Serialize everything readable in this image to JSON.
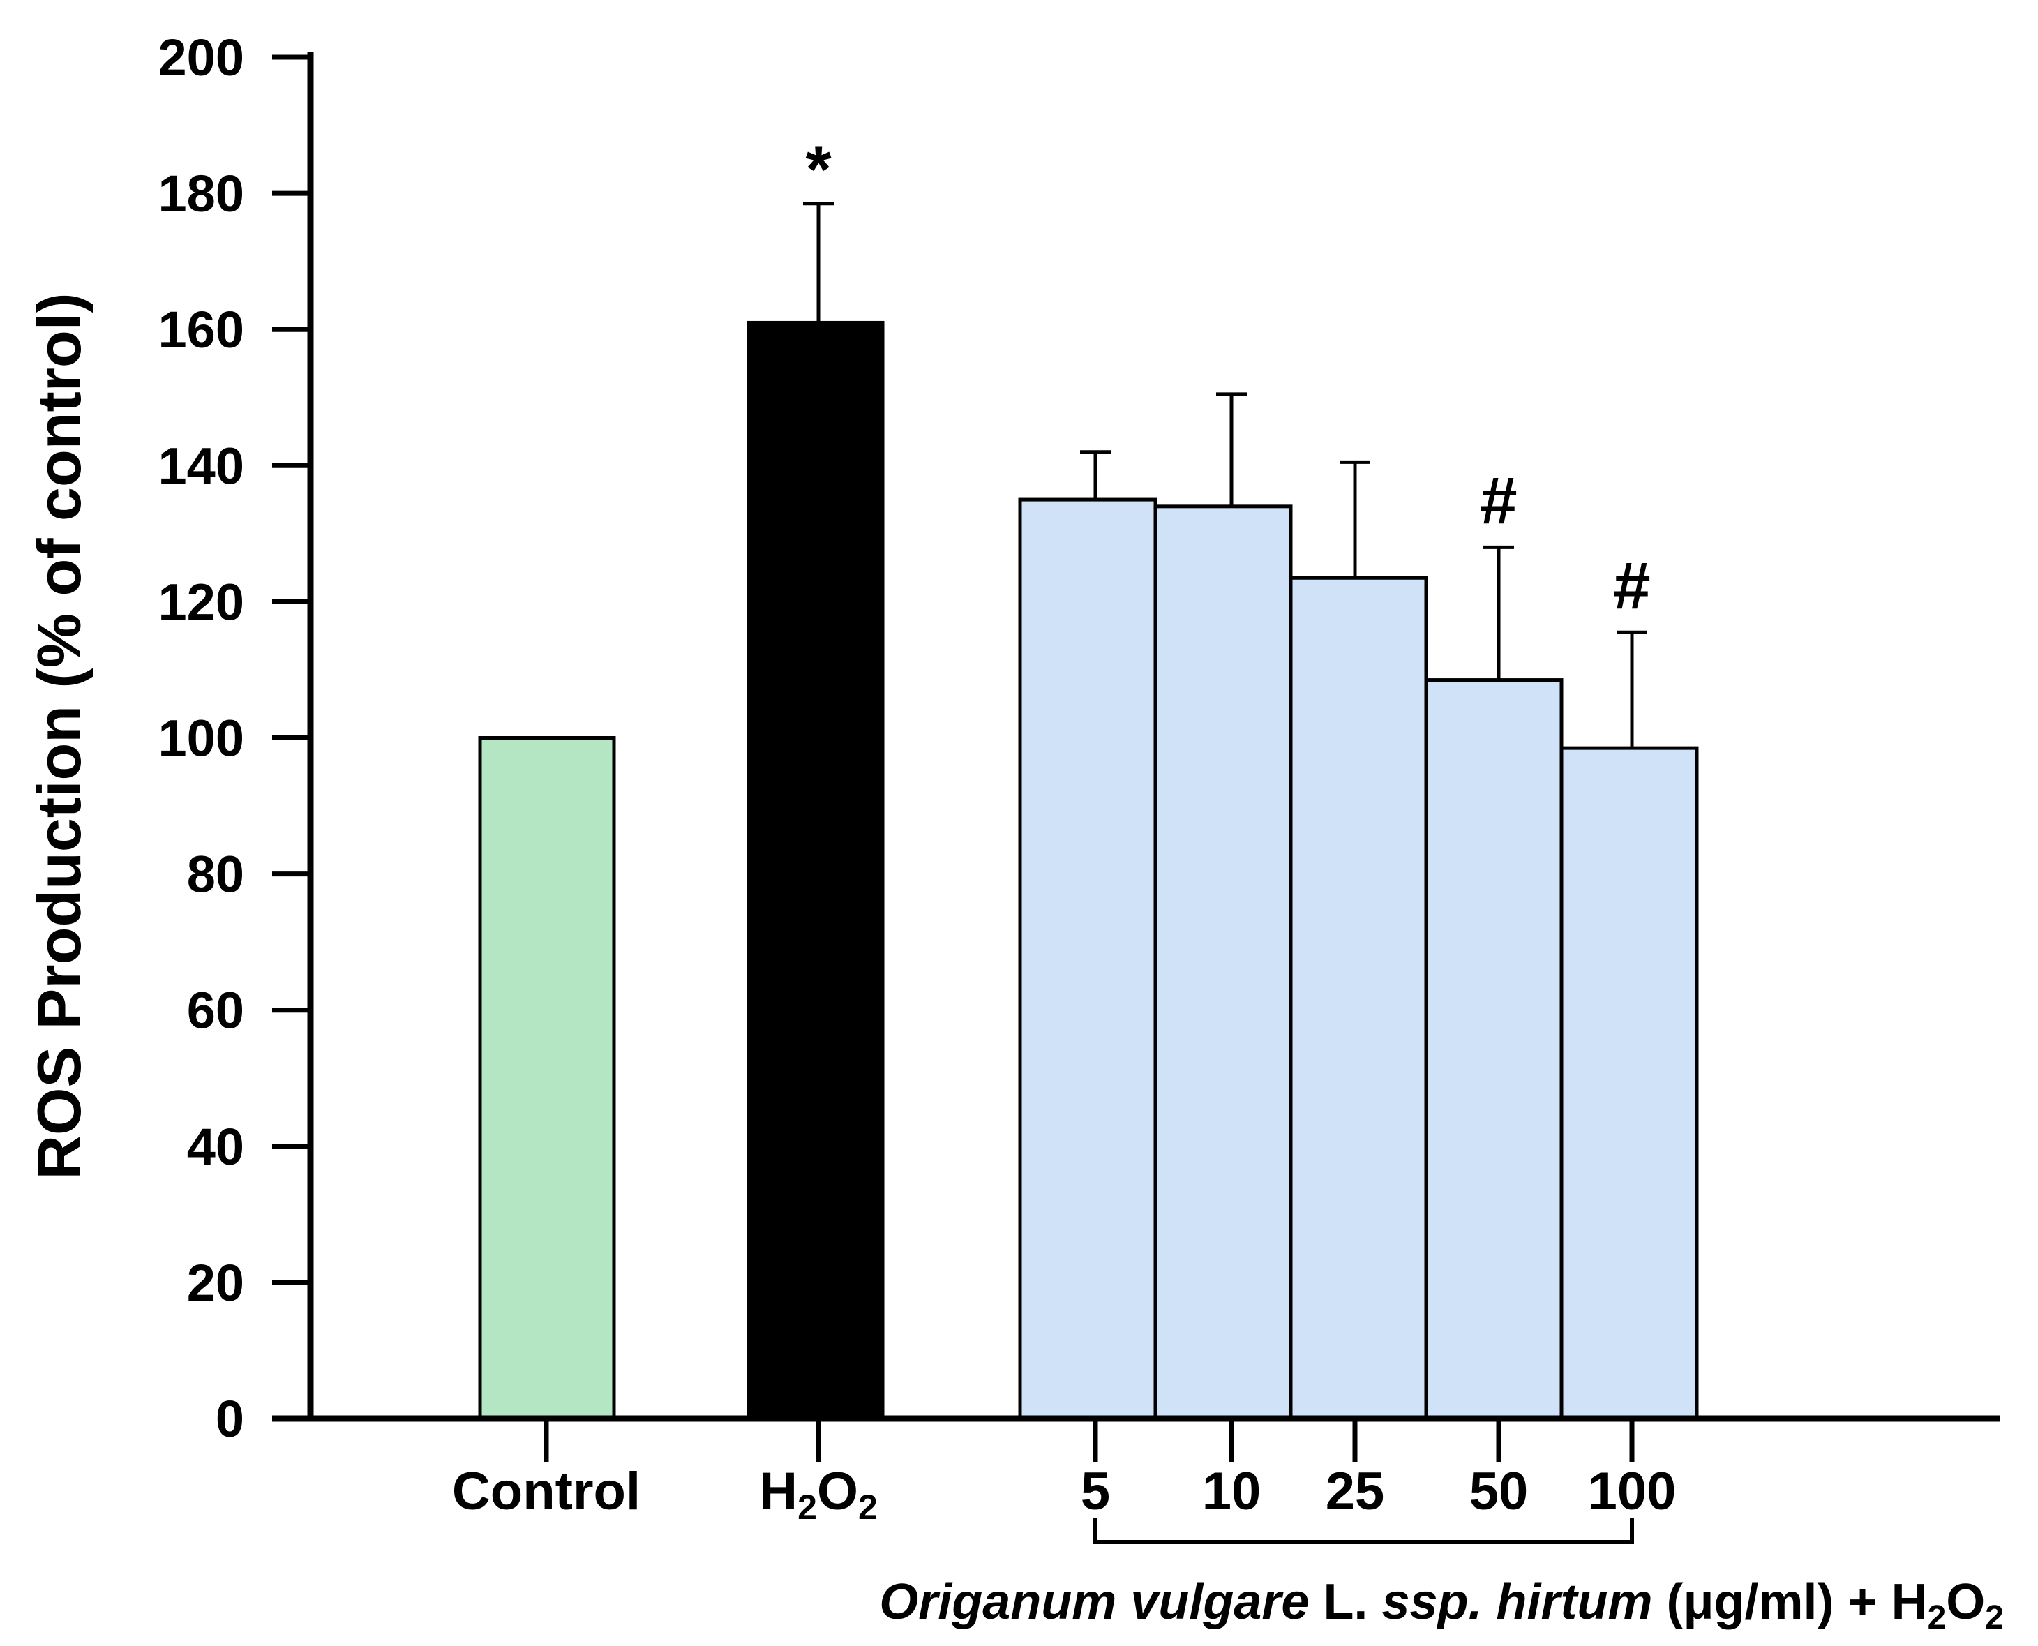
{
  "chart_data": {
    "type": "bar",
    "title": "",
    "ylabel": "ROS Production (% of control)",
    "xlabel": "",
    "ylim": [
      0,
      200
    ],
    "yticks": [
      0,
      20,
      40,
      60,
      80,
      100,
      120,
      140,
      160,
      180,
      200
    ],
    "grid": false,
    "categories": [
      "Control",
      "H2O2",
      "5",
      "10",
      "25",
      "50",
      "100"
    ],
    "bars": [
      {
        "label": "Control",
        "value": 100,
        "error": 0,
        "sig": "",
        "color": "#b5e6c4"
      },
      {
        "label": "H2O2",
        "value": 161,
        "error": 17.5,
        "sig": "*",
        "color": "#000000"
      },
      {
        "label": "5",
        "value": 135,
        "error": 7,
        "sig": "",
        "color": "#d0e2f8"
      },
      {
        "label": "10",
        "value": 134,
        "error": 16.5,
        "sig": "",
        "color": "#d0e2f8"
      },
      {
        "label": "25",
        "value": 123.5,
        "error": 17,
        "sig": "",
        "color": "#d0e2f8"
      },
      {
        "label": "50",
        "value": 108.5,
        "error": 19.5,
        "sig": "#",
        "color": "#d0e2f8"
      },
      {
        "label": "100",
        "value": 98.5,
        "error": 17,
        "sig": "#",
        "color": "#d0e2f8"
      }
    ],
    "h2o2_label": {
      "base": "H",
      "sub1": "2",
      "mid": "O",
      "sub2": "2"
    },
    "group_label": {
      "italic": "Origanum vulgare",
      "plain1": " L. ",
      "italic2": "ssp. hirtum",
      "plain2": " (μg/ml) + H",
      "sub1": "2",
      "mid": "O",
      "sub2": "2"
    }
  }
}
